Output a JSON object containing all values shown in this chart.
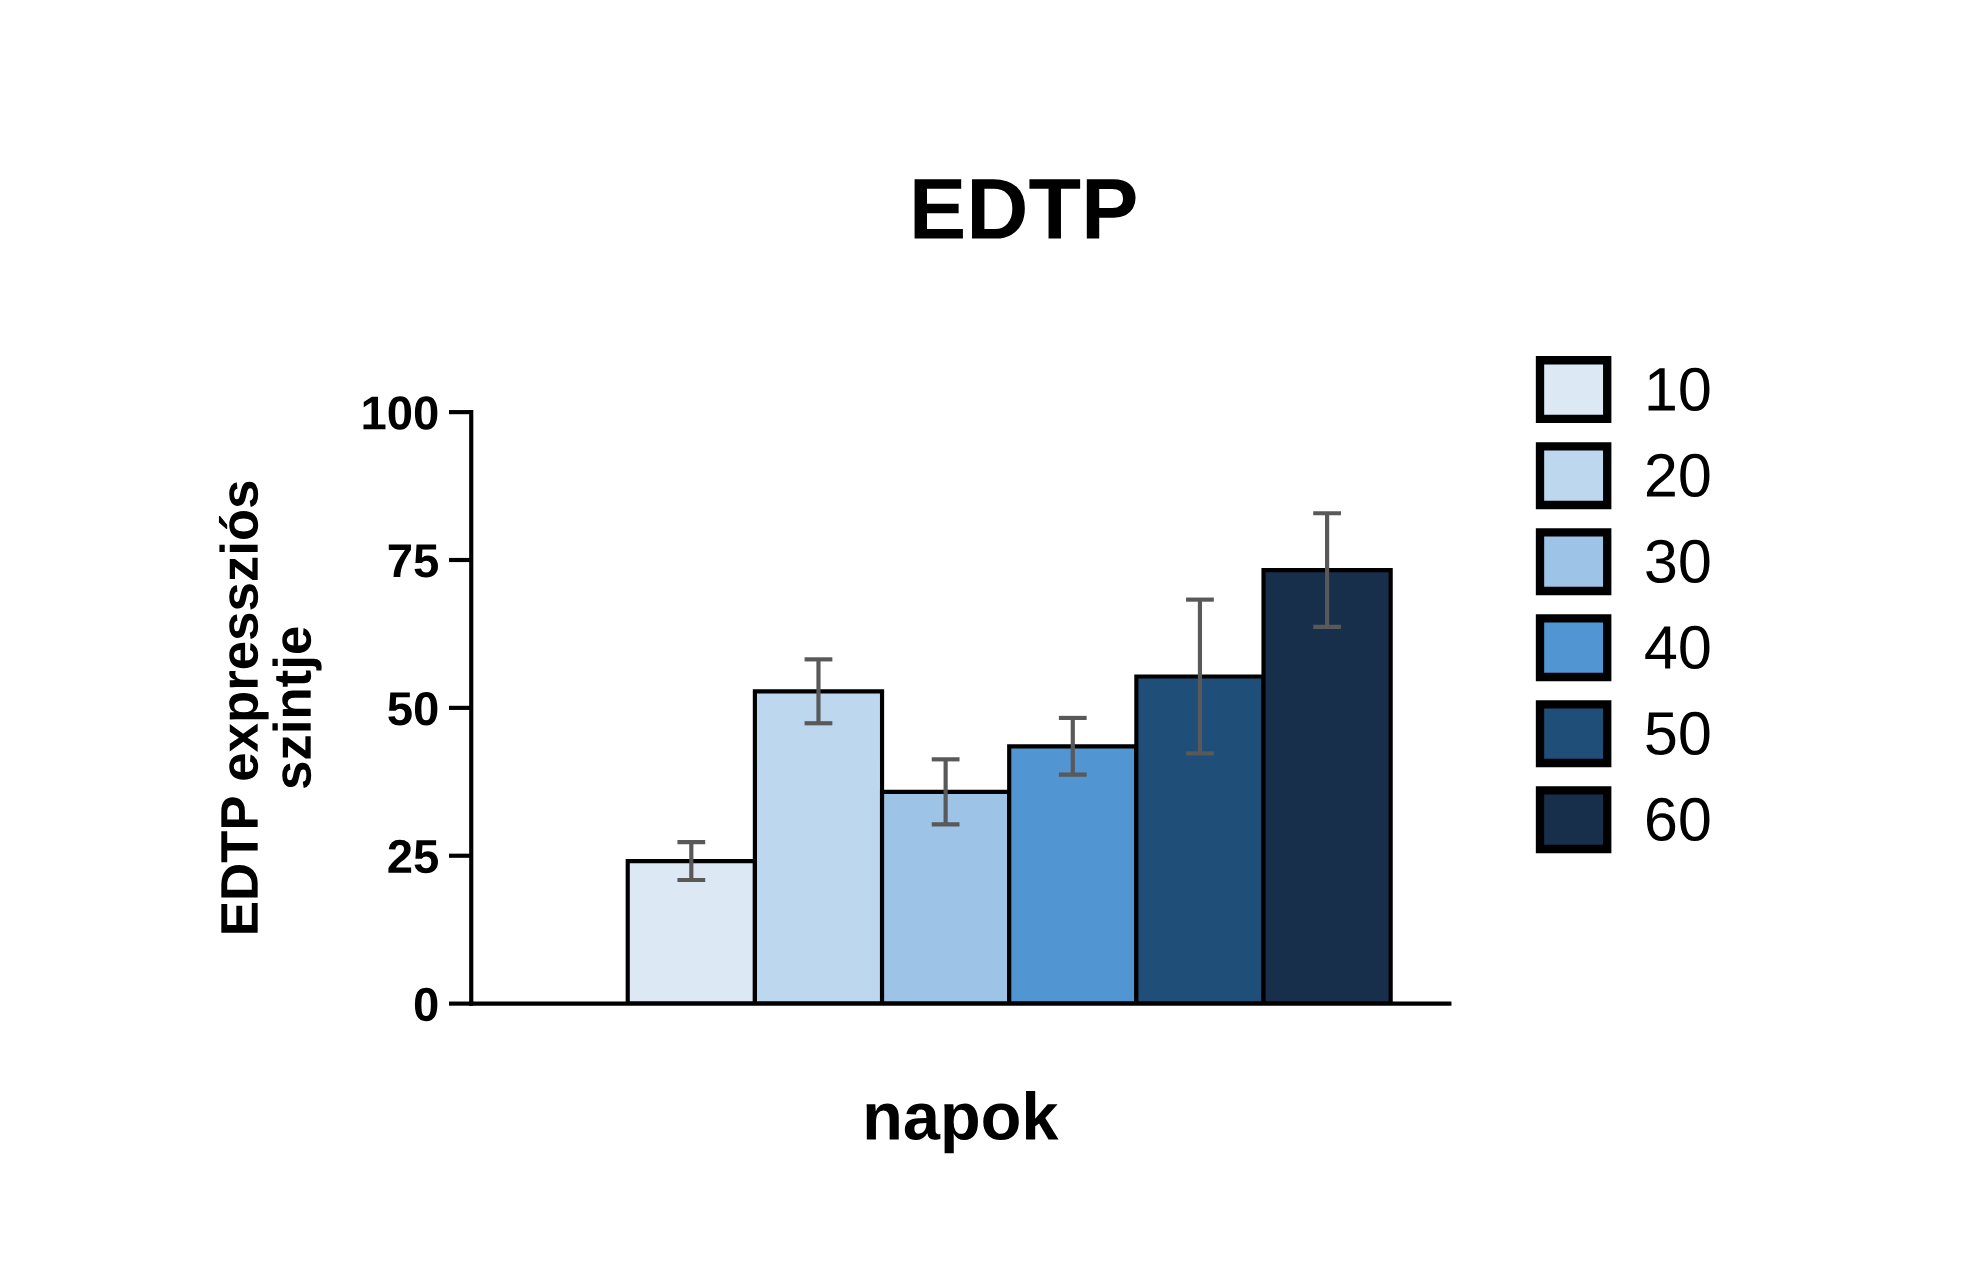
{
  "chart_data": {
    "type": "bar",
    "title": "EDTP",
    "xlabel": "napok",
    "ylabel": "EDTP expressziós\nszintje",
    "categories": [
      null
    ],
    "series": [
      {
        "name": "10",
        "color": "#dde8f5",
        "values": [
          24.1
        ],
        "errors": [
          3.2
        ]
      },
      {
        "name": "20",
        "color": "#bdd7ee",
        "values": [
          52.8
        ],
        "errors": [
          5.4
        ]
      },
      {
        "name": "30",
        "color": "#9dc3e6",
        "values": [
          35.8
        ],
        "errors": [
          5.5
        ]
      },
      {
        "name": "40",
        "color": "#5195d3",
        "values": [
          43.5
        ],
        "errors": [
          4.8
        ]
      },
      {
        "name": "50",
        "color": "#1f4e79",
        "values": [
          55.3
        ],
        "errors": [
          13
        ]
      },
      {
        "name": "60",
        "color": "#172f4b",
        "values": [
          73.3
        ],
        "errors": [
          9.6
        ]
      }
    ],
    "ylim": [
      0,
      100
    ],
    "yticks": [
      0,
      25,
      50,
      75,
      100
    ],
    "grid": false,
    "legend": "right"
  }
}
